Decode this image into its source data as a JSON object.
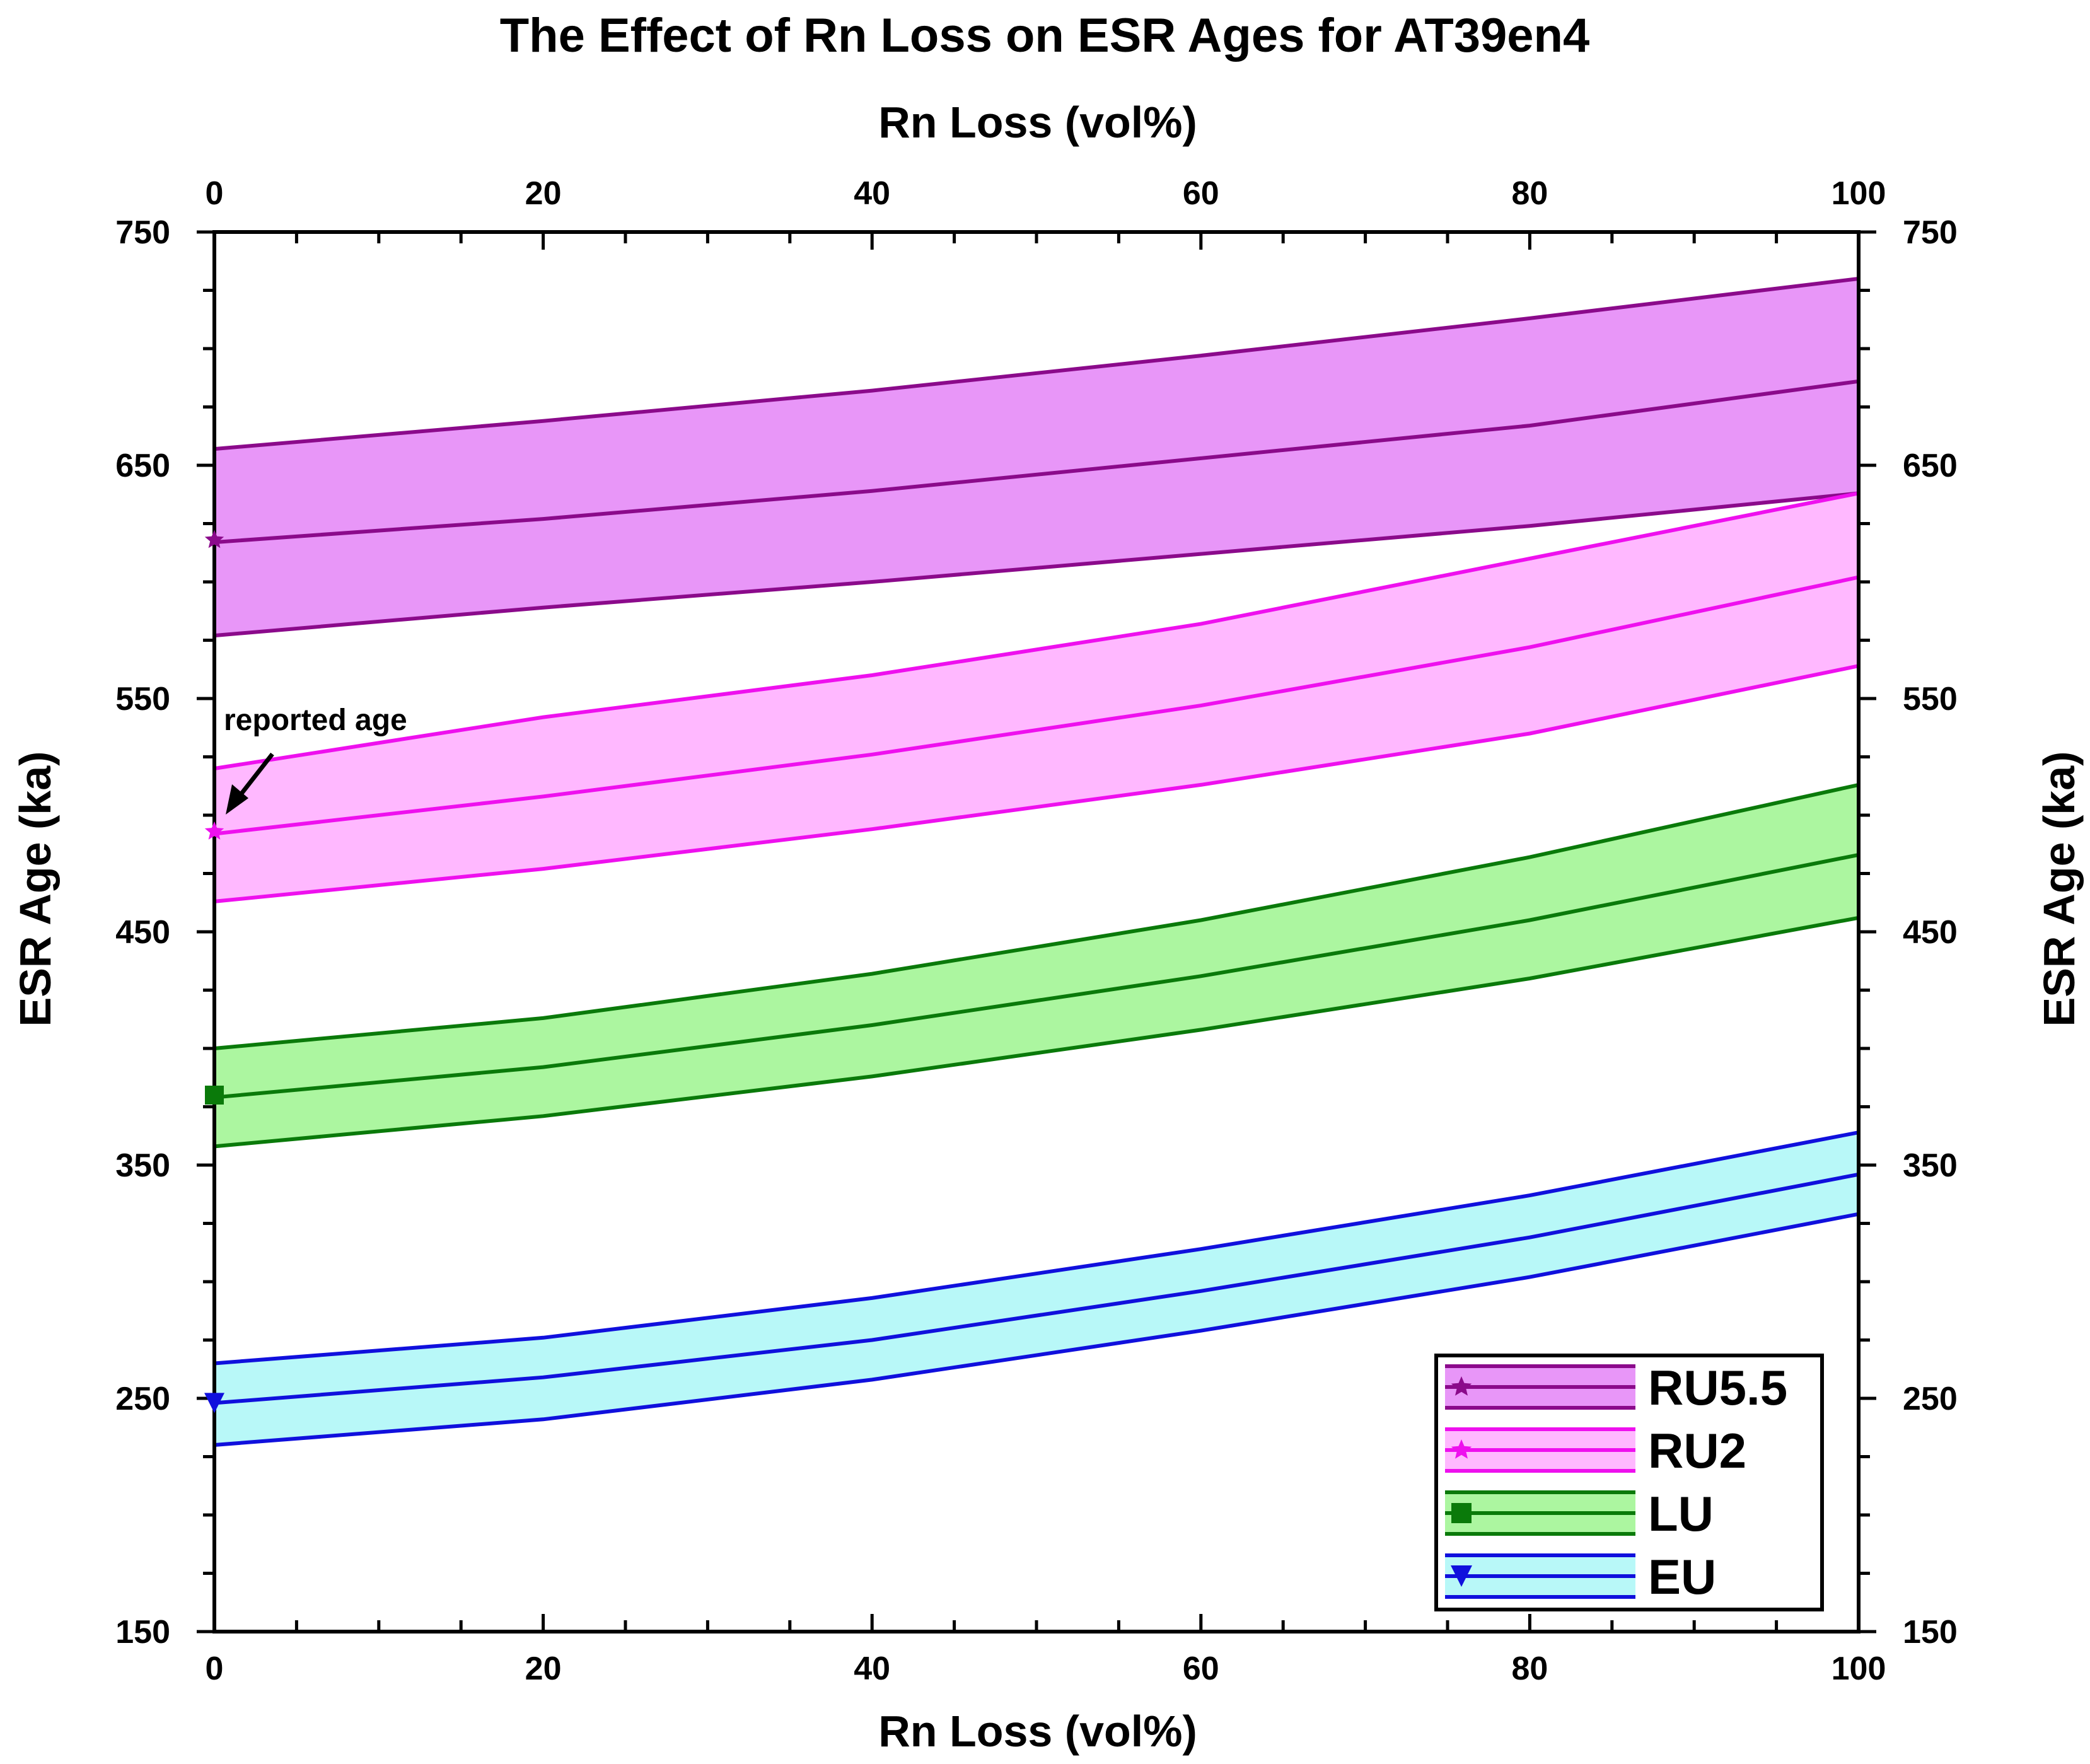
{
  "chart_data": {
    "type": "area",
    "title": "The Effect of Rn Loss on ESR Ages for AT39en4",
    "xlabel": "Rn Loss (vol%)",
    "xlabel_top": "Rn Loss (vol%)",
    "ylabel": "ESR Age (ka)",
    "ylabel_right": "ESR Age (ka)",
    "xlim": [
      0,
      100
    ],
    "ylim": [
      150,
      750
    ],
    "x_ticks": [
      "0",
      "20",
      "40",
      "60",
      "80",
      "100"
    ],
    "y_ticks": [
      "150",
      "250",
      "350",
      "450",
      "550",
      "650",
      "750"
    ],
    "x": [
      0,
      20,
      40,
      60,
      80,
      100
    ],
    "series": [
      {
        "name": "RU5.5",
        "line_color": "#8b0a8b",
        "fill_color": "#e896f8",
        "marker": "star",
        "upper": [
          657,
          669,
          682,
          697,
          713,
          730
        ],
        "center": [
          617,
          627,
          639,
          653,
          667,
          686
        ],
        "lower": [
          577,
          589,
          600,
          612,
          624,
          638
        ],
        "reported": 618
      },
      {
        "name": "RU2",
        "line_color": "#ee10ee",
        "fill_color": "#ffb8ff",
        "marker": "star",
        "upper": [
          520,
          542,
          560,
          582,
          610,
          638
        ],
        "center": [
          492,
          508,
          526,
          547,
          572,
          602
        ],
        "lower": [
          463,
          477,
          494,
          513,
          535,
          564
        ],
        "reported": 493
      },
      {
        "name": "LU",
        "line_color": "#0a7a0a",
        "fill_color": "#acf6a0",
        "marker": "square",
        "upper": [
          400,
          413,
          432,
          455,
          482,
          513
        ],
        "center": [
          379,
          392,
          410,
          431,
          455,
          483
        ],
        "lower": [
          358,
          371,
          388,
          408,
          430,
          456
        ],
        "reported": 380
      },
      {
        "name": "EU",
        "line_color": "#1010dd",
        "fill_color": "#b8f8f8",
        "marker": "triangle-down",
        "upper": [
          265,
          276,
          293,
          314,
          337,
          364
        ],
        "center": [
          248,
          259,
          275,
          296,
          319,
          346
        ],
        "lower": [
          230,
          241,
          258,
          279,
          302,
          329
        ],
        "reported": 248
      }
    ],
    "annotations": [
      {
        "text": "reported age"
      }
    ],
    "legend": {
      "position": "bottom-right",
      "entries": [
        "RU5.5",
        "RU2",
        "LU",
        "EU"
      ]
    }
  }
}
